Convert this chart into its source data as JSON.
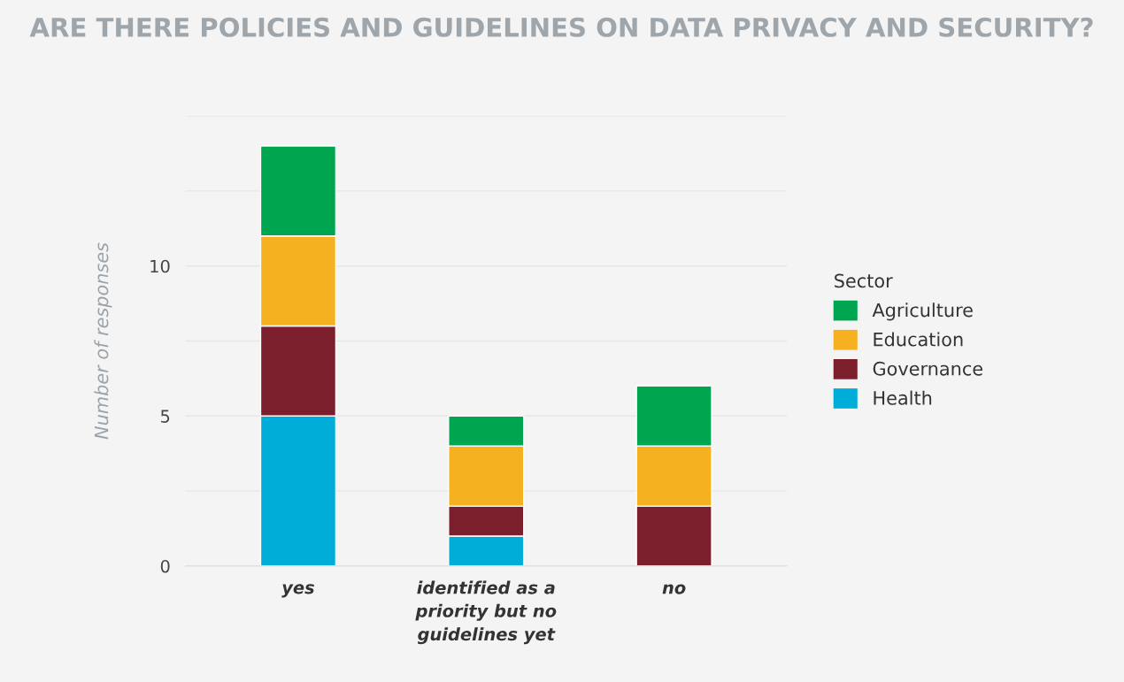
{
  "chart_data": {
    "type": "bar",
    "stacked": true,
    "title": "ARE THERE POLICIES AND GUIDELINES ON DATA PRIVACY AND SECURITY?",
    "ylabel": "Number of responses",
    "legend_title": "Sector",
    "legend": "right",
    "categories": [
      "yes",
      "identified as a priority but no guidelines yet",
      "no"
    ],
    "series": [
      {
        "name": "Health",
        "color": "#00acd8",
        "values": [
          5,
          1,
          0
        ]
      },
      {
        "name": "Governance",
        "color": "#7a1f2b",
        "values": [
          3,
          1,
          2
        ]
      },
      {
        "name": "Education",
        "color": "#f5b120",
        "values": [
          3,
          2,
          2
        ]
      },
      {
        "name": "Agriculture",
        "color": "#00a550",
        "values": [
          3,
          1,
          2
        ]
      }
    ],
    "ylim": [
      0,
      15
    ],
    "yticks": [
      0,
      {
        "value": 2.5,
        "label": null
      },
      5,
      {
        "value": 7.5,
        "label": null
      },
      10,
      {
        "value": 12.5,
        "label": null
      },
      {
        "value": 15,
        "label": null
      }
    ],
    "grid": "y"
  }
}
